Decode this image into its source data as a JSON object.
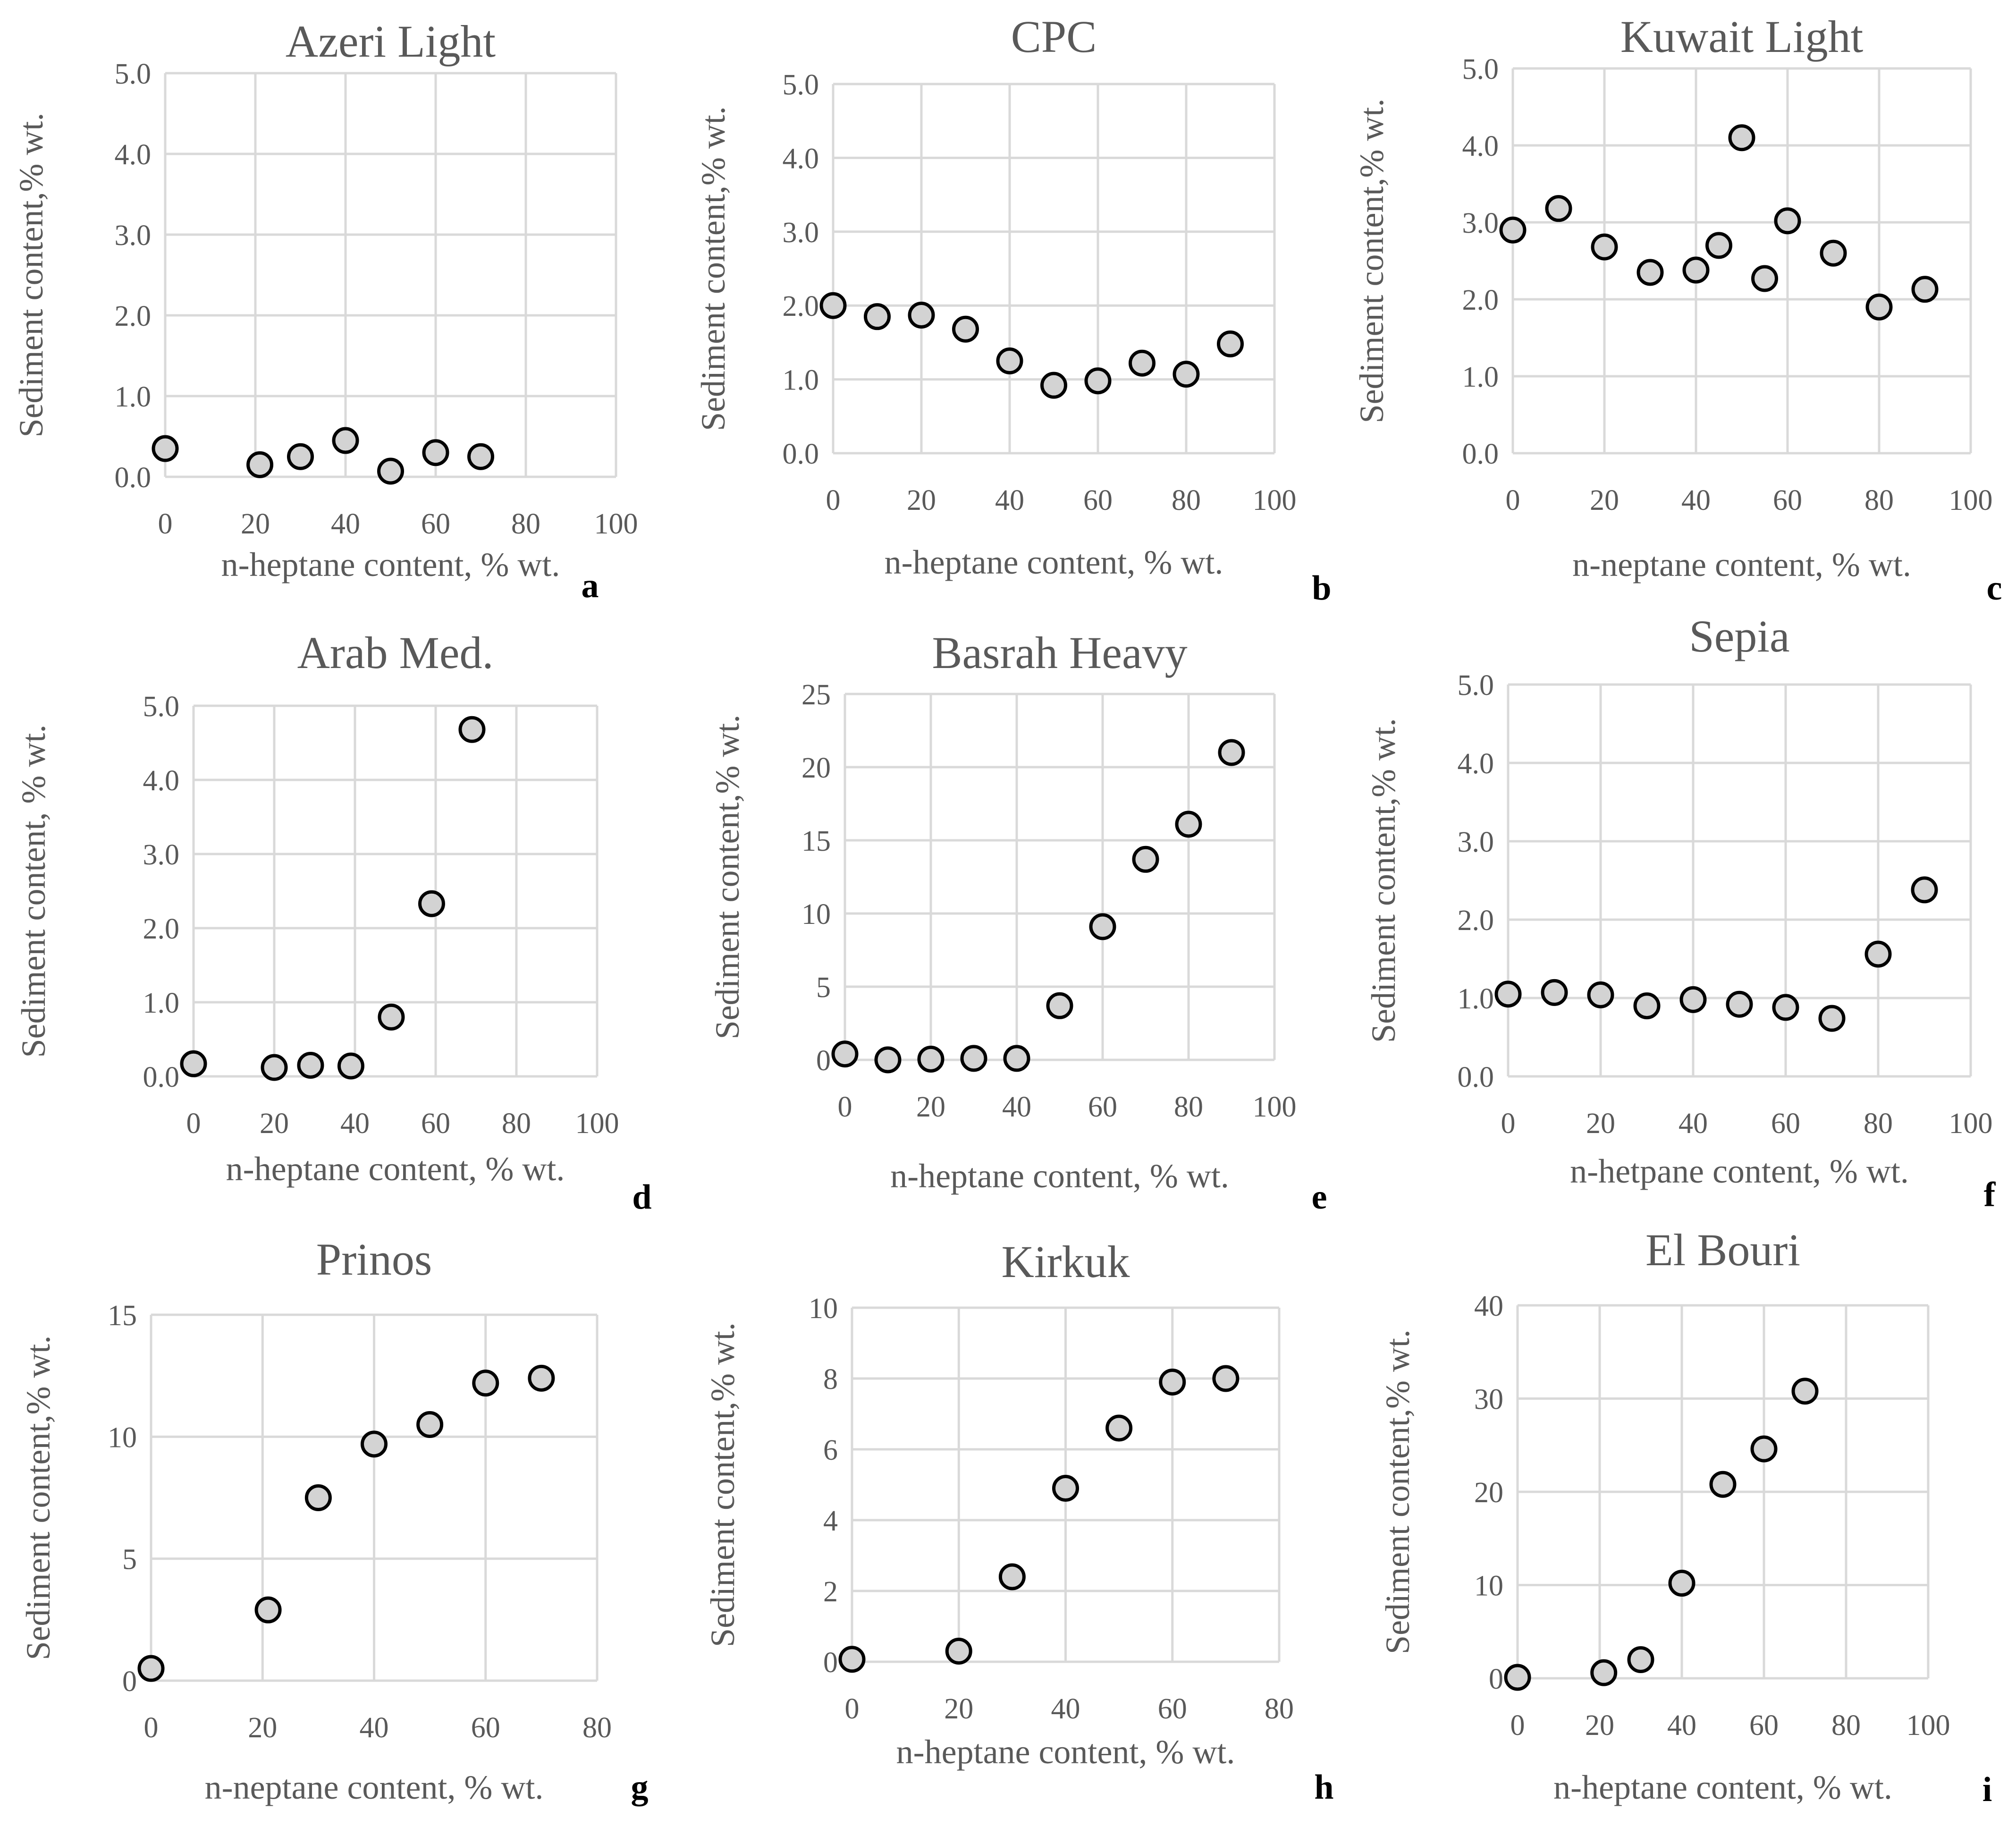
{
  "chart_data": [
    {
      "type": "scatter",
      "panel": "a",
      "title": "Azeri Light",
      "xlabel": "n-heptane content, % wt.",
      "ylabel": "Sediment content,% wt.",
      "xlim": [
        0,
        100
      ],
      "ylim": [
        0,
        5
      ],
      "xticks": [
        "0",
        "20",
        "40",
        "60",
        "80",
        "100"
      ],
      "yticks": [
        "0.0",
        "1.0",
        "2.0",
        "3.0",
        "4.0",
        "5.0"
      ],
      "grid": true,
      "x": [
        0,
        21,
        30,
        40,
        50,
        60,
        70
      ],
      "y": [
        0.35,
        0.15,
        0.25,
        0.45,
        0.07,
        0.3,
        0.25
      ]
    },
    {
      "type": "scatter",
      "panel": "b",
      "title": "CPC",
      "xlabel": "n-heptane content, % wt.",
      "ylabel": "Sediment content,% wt.",
      "xlim": [
        0,
        100
      ],
      "ylim": [
        0,
        5
      ],
      "xticks": [
        "0",
        "20",
        "40",
        "60",
        "80",
        "100"
      ],
      "yticks": [
        "0.0",
        "1.0",
        "2.0",
        "3.0",
        "4.0",
        "5.0"
      ],
      "grid": true,
      "x": [
        0,
        10,
        20,
        30,
        40,
        50,
        60,
        70,
        80,
        90
      ],
      "y": [
        2.0,
        1.85,
        1.87,
        1.68,
        1.25,
        0.92,
        0.98,
        1.22,
        1.07,
        1.48
      ]
    },
    {
      "type": "scatter",
      "panel": "c",
      "title": "Kuwait Light",
      "xlabel": "n-neptane content, % wt.",
      "ylabel": "Sediment content,% wt.",
      "xlim": [
        0,
        100
      ],
      "ylim": [
        0,
        5
      ],
      "xticks": [
        "0",
        "20",
        "40",
        "60",
        "80",
        "100"
      ],
      "yticks": [
        "0.0",
        "1.0",
        "2.0",
        "3.0",
        "4.0",
        "5.0"
      ],
      "grid": true,
      "x": [
        0,
        10,
        20,
        30,
        40,
        45,
        50,
        55,
        60,
        70,
        80,
        90
      ],
      "y": [
        2.9,
        3.18,
        2.68,
        2.35,
        2.38,
        2.7,
        4.1,
        2.27,
        3.02,
        2.6,
        1.9,
        2.13
      ]
    },
    {
      "type": "scatter",
      "panel": "d",
      "title": "Arab Med.",
      "xlabel": "n-heptane content, % wt.",
      "ylabel": "Sediment content, % wt.",
      "xlim": [
        0,
        100
      ],
      "ylim": [
        0,
        5
      ],
      "xticks": [
        "0",
        "20",
        "40",
        "60",
        "80",
        "100"
      ],
      "yticks": [
        "0.0",
        "1.0",
        "2.0",
        "3.0",
        "4.0",
        "5.0"
      ],
      "grid": true,
      "x": [
        0,
        20,
        29,
        39,
        49,
        59,
        69
      ],
      "y": [
        0.17,
        0.12,
        0.15,
        0.14,
        0.8,
        2.33,
        4.68
      ]
    },
    {
      "type": "scatter",
      "panel": "e",
      "title": "Basrah Heavy",
      "xlabel": "n-heptane content, % wt.",
      "ylabel": "Sediment content,% wt.",
      "xlim": [
        0,
        100
      ],
      "ylim": [
        0,
        25
      ],
      "xticks": [
        "0",
        "20",
        "40",
        "60",
        "80",
        "100"
      ],
      "yticks": [
        "0",
        "5",
        "10",
        "15",
        "20",
        "25"
      ],
      "grid": true,
      "x": [
        0,
        10,
        20,
        30,
        40,
        50,
        60,
        70,
        80,
        90
      ],
      "y": [
        0.4,
        0.0,
        0.05,
        0.1,
        0.1,
        3.7,
        9.1,
        13.7,
        16.1,
        21.0
      ]
    },
    {
      "type": "scatter",
      "panel": "f",
      "title": "Sepia",
      "xlabel": "n-hetpane content, % wt.",
      "ylabel": "Sediment content,% wt.",
      "xlim": [
        0,
        100
      ],
      "ylim": [
        0,
        5
      ],
      "xticks": [
        "0",
        "20",
        "40",
        "60",
        "80",
        "100"
      ],
      "yticks": [
        "0.0",
        "1.0",
        "2.0",
        "3.0",
        "4.0",
        "5.0"
      ],
      "grid": true,
      "x": [
        0,
        10,
        20,
        30,
        40,
        50,
        60,
        70,
        80,
        90
      ],
      "y": [
        1.05,
        1.07,
        1.04,
        0.9,
        0.98,
        0.92,
        0.88,
        0.74,
        1.56,
        2.38
      ]
    },
    {
      "type": "scatter",
      "panel": "g",
      "title": "Prinos",
      "xlabel": "n-neptane content, % wt.",
      "ylabel": "Sediment content,% wt.",
      "xlim": [
        0,
        80
      ],
      "ylim": [
        0,
        15
      ],
      "xticks": [
        "0",
        "20",
        "40",
        "60",
        "80"
      ],
      "yticks": [
        "0",
        "5",
        "10",
        "15"
      ],
      "grid": true,
      "x": [
        0,
        21,
        30,
        40,
        50,
        60,
        70
      ],
      "y": [
        0.5,
        2.9,
        7.5,
        9.7,
        10.5,
        12.2,
        12.4
      ]
    },
    {
      "type": "scatter",
      "panel": "h",
      "title": "Kirkuk",
      "xlabel": "n-heptane content, % wt.",
      "ylabel": "Sediment content,% wt.",
      "xlim": [
        0,
        80
      ],
      "ylim": [
        0,
        10
      ],
      "xticks": [
        "0",
        "20",
        "40",
        "60",
        "80"
      ],
      "yticks": [
        "0",
        "2",
        "4",
        "6",
        "8",
        "10"
      ],
      "grid": true,
      "x": [
        0,
        20,
        30,
        40,
        50,
        60,
        70
      ],
      "y": [
        0.07,
        0.3,
        2.4,
        4.9,
        6.6,
        7.9,
        8.0
      ]
    },
    {
      "type": "scatter",
      "panel": "i",
      "title": "El Bouri",
      "xlabel": "n-heptane content, % wt.",
      "ylabel": "Sediment content,% wt.",
      "xlim": [
        0,
        100
      ],
      "ylim": [
        0,
        40
      ],
      "xticks": [
        "0",
        "20",
        "40",
        "60",
        "80",
        "100"
      ],
      "yticks": [
        "0",
        "10",
        "20",
        "30",
        "40"
      ],
      "grid": true,
      "x": [
        0,
        21,
        30,
        40,
        50,
        60,
        70
      ],
      "y": [
        0.1,
        0.6,
        2.0,
        10.2,
        20.8,
        24.6,
        30.8
      ]
    }
  ]
}
